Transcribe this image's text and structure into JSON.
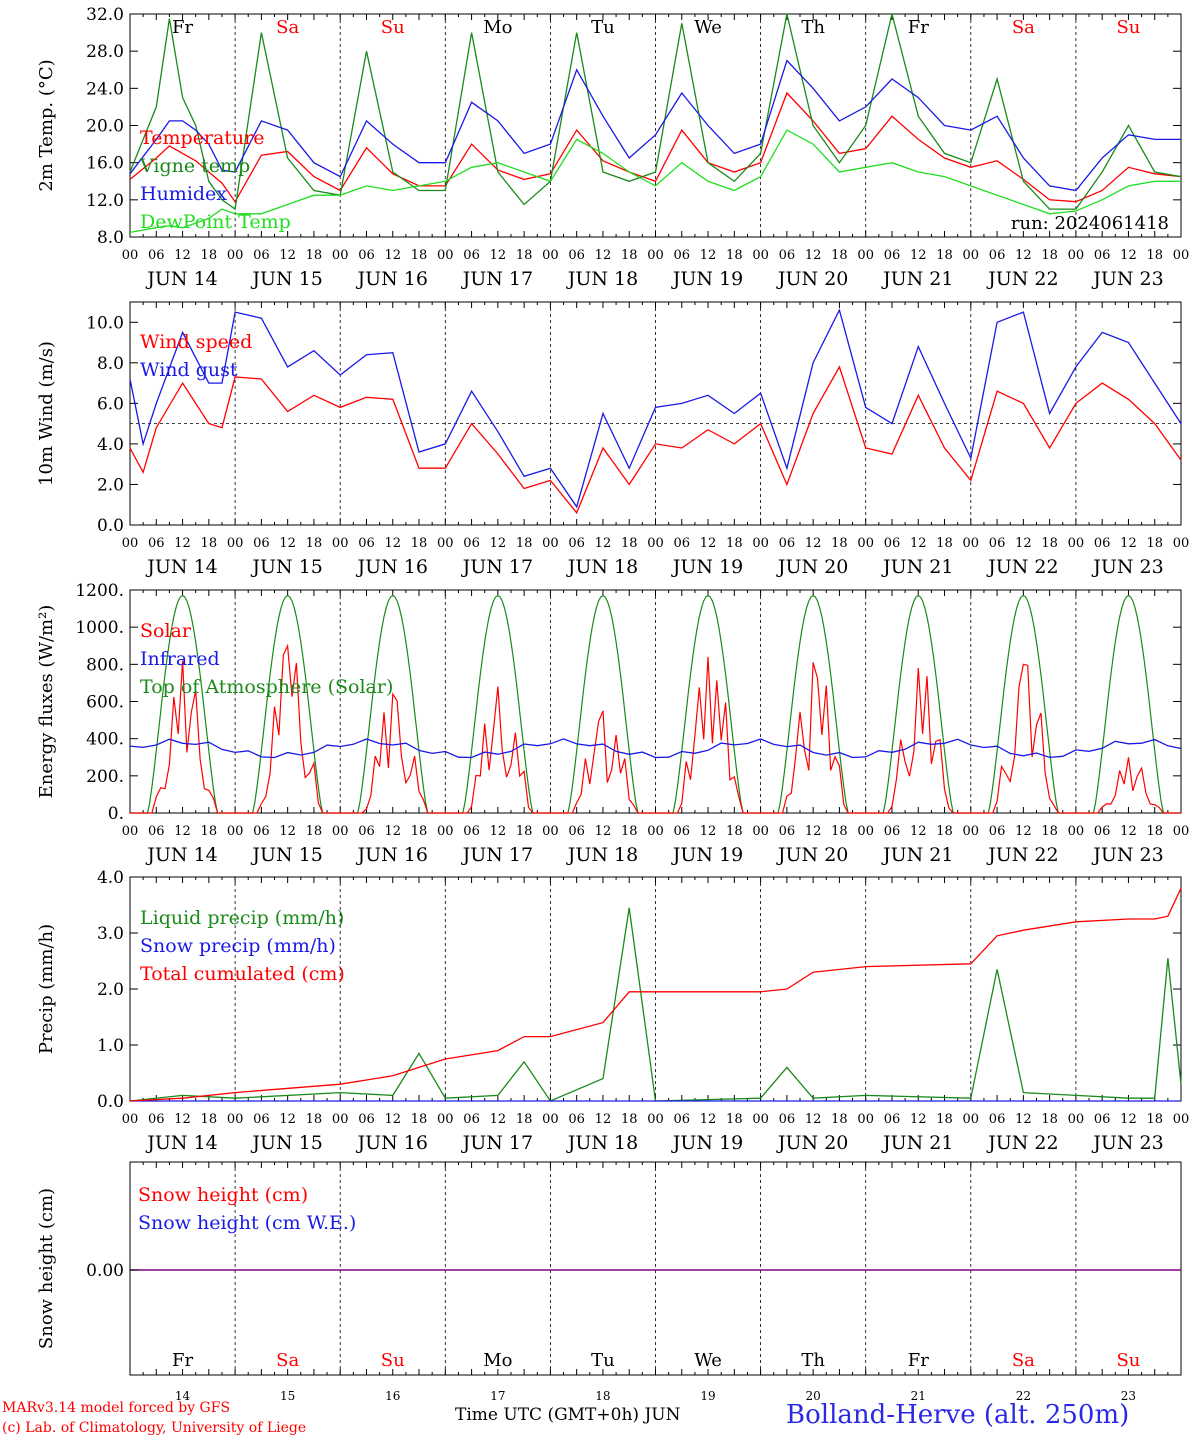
{
  "chart_data": [
    {
      "type": "line",
      "ylabel": "2m Temp. (°C)",
      "ylim": [
        8.0,
        32.0
      ],
      "yticks": [
        "8.0",
        "12.0",
        "16.0",
        "20.0",
        "24.0",
        "28.0",
        "32.0"
      ],
      "x_hours_from_start": [
        0,
        6,
        9,
        12,
        15,
        18,
        21,
        24,
        30,
        36,
        42,
        48,
        54,
        60,
        66,
        72,
        78,
        84,
        90,
        96,
        102,
        108,
        114,
        120,
        126,
        132,
        138,
        144,
        150,
        156,
        162,
        168,
        174,
        180,
        186,
        192,
        198,
        204,
        210,
        216,
        222,
        228,
        234,
        240
      ],
      "series": [
        {
          "name": "Temperature",
          "color": "#ff0000",
          "values": [
            14.2,
            16.5,
            17.8,
            17.0,
            16.2,
            15.0,
            13.8,
            11.8,
            16.8,
            17.2,
            14.5,
            13.0,
            17.6,
            14.8,
            13.5,
            13.5,
            18.0,
            15.2,
            14.2,
            14.8,
            19.5,
            16.2,
            15.0,
            14.0,
            19.5,
            16.0,
            15.0,
            16.0,
            23.5,
            20.5,
            17.0,
            17.5,
            21.0,
            18.5,
            16.5,
            15.5,
            16.2,
            14.2,
            12.0,
            11.8,
            13.0,
            15.5,
            14.8,
            14.5
          ]
        },
        {
          "name": "Vigne temp",
          "color": "#1a8a1a",
          "values": [
            15.0,
            22.0,
            31.5,
            23.0,
            20.0,
            14.0,
            12.0,
            11.0,
            30.0,
            16.5,
            13.0,
            12.5,
            28.0,
            15.0,
            13.0,
            13.0,
            30.0,
            15.0,
            11.5,
            14.0,
            30.0,
            15.0,
            14.0,
            15.0,
            31.0,
            16.0,
            14.0,
            17.0,
            32.0,
            20.0,
            16.0,
            20.0,
            32.0,
            21.0,
            17.0,
            16.0,
            25.0,
            14.0,
            11.0,
            11.0,
            15.0,
            20.0,
            15.0,
            14.5
          ]
        },
        {
          "name": "Humidex",
          "color": "#1a1ae6",
          "values": [
            14.8,
            18.5,
            20.5,
            20.5,
            19.5,
            18.0,
            15.2,
            15.0,
            20.5,
            19.5,
            16.0,
            14.5,
            20.5,
            18.0,
            16.0,
            16.0,
            22.5,
            20.5,
            17.0,
            18.0,
            26.0,
            21.0,
            16.5,
            19.0,
            23.5,
            20.0,
            17.0,
            18.0,
            27.0,
            24.0,
            20.5,
            22.0,
            25.0,
            23.0,
            20.0,
            19.5,
            21.0,
            16.5,
            13.5,
            13.0,
            16.5,
            19.0,
            18.5,
            18.5
          ]
        },
        {
          "name": "DewPoint Temp",
          "color": "#22dd22",
          "values": [
            8.5,
            9.0,
            9.2,
            9.0,
            9.5,
            10.0,
            11.0,
            10.5,
            10.5,
            11.5,
            12.5,
            12.5,
            13.5,
            13.0,
            13.5,
            14.0,
            15.5,
            16.0,
            15.0,
            14.0,
            18.5,
            17.0,
            15.0,
            13.5,
            16.0,
            14.0,
            13.0,
            14.5,
            19.5,
            18.0,
            15.0,
            15.5,
            16.0,
            15.0,
            14.5,
            13.5,
            12.5,
            11.5,
            10.5,
            10.8,
            12.0,
            13.5,
            14.0,
            14.0
          ]
        }
      ],
      "x_day_labels": [
        "JUN 14",
        "JUN 15",
        "JUN 16",
        "JUN 17",
        "JUN 18",
        "JUN 19",
        "JUN 20",
        "JUN 21",
        "JUN 22",
        "JUN 23"
      ],
      "x_hour_ticks": [
        "00",
        "06",
        "12",
        "18"
      ],
      "weekdays": [
        "Fr",
        "Sa",
        "Su",
        "Mo",
        "Tu",
        "We",
        "Th",
        "Fr",
        "Sa",
        "Su"
      ],
      "weekday_colors": [
        "#000000",
        "#ff0000",
        "#ff0000",
        "#000000",
        "#000000",
        "#000000",
        "#000000",
        "#000000",
        "#ff0000",
        "#ff0000"
      ],
      "annotation": "run: 2024061418"
    },
    {
      "type": "line",
      "ylabel": "10m Wind (m/s)",
      "ylim": [
        0.0,
        11.0
      ],
      "yticks": [
        "0.0",
        "2.0",
        "4.0",
        "6.0",
        "8.0",
        "10.0"
      ],
      "reference_line": 5.0,
      "x_hours_from_start": [
        0,
        3,
        6,
        12,
        18,
        21,
        24,
        30,
        36,
        42,
        48,
        54,
        60,
        66,
        72,
        78,
        84,
        90,
        96,
        102,
        108,
        114,
        120,
        126,
        132,
        138,
        144,
        150,
        156,
        162,
        168,
        174,
        180,
        186,
        192,
        198,
        204,
        210,
        216,
        222,
        228,
        234,
        240
      ],
      "series": [
        {
          "name": "Wind speed",
          "color": "#ff0000",
          "values": [
            3.8,
            2.6,
            4.8,
            7.0,
            5.0,
            4.8,
            7.3,
            7.2,
            5.6,
            6.4,
            5.8,
            6.3,
            6.2,
            2.8,
            2.8,
            5.0,
            3.5,
            1.8,
            2.2,
            0.6,
            3.8,
            2.0,
            4.0,
            3.8,
            4.7,
            4.0,
            5.0,
            2.0,
            5.5,
            7.8,
            3.8,
            3.5,
            6.4,
            3.8,
            2.2,
            6.6,
            6.0,
            3.8,
            6.0,
            7.0,
            6.2,
            5.0,
            3.2
          ]
        },
        {
          "name": "Wind gust",
          "color": "#1a1ae6",
          "values": [
            7.2,
            4.0,
            6.0,
            9.5,
            7.0,
            7.0,
            10.5,
            10.2,
            7.8,
            8.6,
            7.4,
            8.4,
            8.5,
            3.6,
            4.0,
            6.6,
            4.6,
            2.4,
            2.8,
            0.9,
            5.5,
            2.8,
            5.8,
            6.0,
            6.4,
            5.5,
            6.5,
            2.8,
            8.0,
            10.6,
            5.8,
            5.0,
            8.8,
            6.0,
            3.3,
            10.0,
            10.5,
            5.5,
            7.8,
            9.5,
            9.0,
            7.0,
            5.0
          ]
        }
      ],
      "x_day_labels": [
        "JUN 14",
        "JUN 15",
        "JUN 16",
        "JUN 17",
        "JUN 18",
        "JUN 19",
        "JUN 20",
        "JUN 21",
        "JUN 22",
        "JUN 23"
      ],
      "x_hour_ticks": [
        "00",
        "06",
        "12",
        "18"
      ]
    },
    {
      "type": "line",
      "ylabel": "Energy fluxes (W/m²)",
      "ylim": [
        0,
        1200
      ],
      "yticks": [
        "0.",
        "200.",
        "400.",
        "600.",
        "800.",
        "1000.",
        "1200."
      ],
      "series": [
        {
          "name": "Solar",
          "color": "#ff0000",
          "daily_peaks": [
            820,
            900,
            640,
            680,
            550,
            840,
            810,
            780,
            800,
            300
          ]
        },
        {
          "name": "Infrared",
          "color": "#1a1ae6",
          "approx_range": [
            290,
            400
          ]
        },
        {
          "name": "Top of Atmosphere (Solar)",
          "color": "#1a8a1a",
          "daily_peak": 1170
        }
      ],
      "x_day_labels": [
        "JUN 14",
        "JUN 15",
        "JUN 16",
        "JUN 17",
        "JUN 18",
        "JUN 19",
        "JUN 20",
        "JUN 21",
        "JUN 22",
        "JUN 23"
      ],
      "x_hour_ticks": [
        "00",
        "06",
        "12",
        "18"
      ]
    },
    {
      "type": "line",
      "ylabel": "Precip (mm/h)",
      "ylim": [
        0.0,
        4.0
      ],
      "yticks": [
        "0.0",
        "1.0",
        "2.0",
        "3.0",
        "4.0"
      ],
      "x_hours_from_start": [
        0,
        12,
        24,
        48,
        60,
        66,
        72,
        84,
        90,
        96,
        108,
        114,
        120,
        144,
        150,
        156,
        168,
        192,
        198,
        204,
        216,
        228,
        234,
        237,
        240
      ],
      "series": [
        {
          "name": "Liquid precip (mm/h)",
          "color": "#1a8a1a",
          "values": [
            0.0,
            0.1,
            0.05,
            0.15,
            0.1,
            0.85,
            0.05,
            0.1,
            0.7,
            0.0,
            0.4,
            3.45,
            0.0,
            0.05,
            0.6,
            0.05,
            0.1,
            0.05,
            2.35,
            0.15,
            0.1,
            0.05,
            0.05,
            2.55,
            0.3
          ]
        },
        {
          "name": "Snow precip (mm/h)",
          "color": "#1a1ae6",
          "values": [
            0.0,
            0.0,
            0.0,
            0.0,
            0.0,
            0.0,
            0.0,
            0.0,
            0.0,
            0.0,
            0.0,
            0.0,
            0.0,
            0.0,
            0.0,
            0.0,
            0.0,
            0.0,
            0.0,
            0.0,
            0.0,
            0.0,
            0.0,
            0.0,
            0.0
          ]
        },
        {
          "name": "Total cumulated (cm)",
          "color": "#ff0000",
          "values": [
            0.0,
            0.05,
            0.15,
            0.3,
            0.45,
            0.6,
            0.75,
            0.9,
            1.15,
            1.15,
            1.4,
            1.95,
            1.95,
            1.95,
            2.0,
            2.3,
            2.4,
            2.45,
            2.95,
            3.05,
            3.2,
            3.25,
            3.25,
            3.3,
            3.8
          ]
        }
      ],
      "x_day_labels": [
        "JUN 14",
        "JUN 15",
        "JUN 16",
        "JUN 17",
        "JUN 18",
        "JUN 19",
        "JUN 20",
        "JUN 21",
        "JUN 22",
        "JUN 23"
      ],
      "x_hour_ticks": [
        "00",
        "06",
        "12",
        "18"
      ]
    },
    {
      "type": "line",
      "ylabel": "Snow height (cm)",
      "yticks": [
        "0.00"
      ],
      "series": [
        {
          "name": "Snow height (cm)",
          "color": "#ff0000",
          "values": [
            0.0,
            0.0
          ]
        },
        {
          "name": "Snow height (cm W.E.)",
          "color": "#1a1ae6",
          "values": [
            0.0,
            0.0
          ]
        }
      ],
      "weekdays": [
        "Fr",
        "Sa",
        "Su",
        "Mo",
        "Tu",
        "We",
        "Th",
        "Fr",
        "Sa",
        "Su"
      ],
      "day_numbers": [
        "14",
        "15",
        "16",
        "17",
        "18",
        "19",
        "20",
        "21",
        "22",
        "23"
      ]
    }
  ],
  "footer": {
    "model": "MARv3.14 model forced by GFS",
    "lab": "(c) Lab. of Climatology, University of Liege",
    "time_axis": "Time UTC (GMT+0h) JUN",
    "station": "Bolland-Herve (alt. 250m)"
  }
}
